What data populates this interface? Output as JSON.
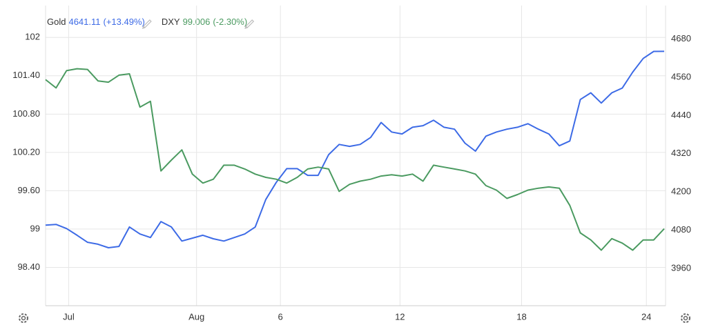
{
  "chart_data": {
    "type": "line",
    "legend": [
      {
        "name": "Gold",
        "value": "4641.11",
        "change": "(+13.49%)",
        "color": "#3c6ae6"
      },
      {
        "name": "DXY",
        "value": "99.006",
        "change": "(-2.30%)",
        "color": "#4a9a60"
      }
    ],
    "x": [
      0,
      1,
      2,
      3,
      4,
      5,
      6,
      7,
      8,
      9,
      10,
      11,
      12,
      13,
      14,
      15,
      16,
      17,
      18,
      19,
      20,
      21,
      22,
      23,
      24,
      25,
      26,
      27,
      28,
      29,
      30,
      31,
      32,
      33,
      34,
      35,
      36,
      37,
      38,
      39,
      40,
      41,
      42,
      43,
      44,
      45,
      46,
      47,
      48,
      49,
      50,
      51,
      52,
      53,
      54,
      55,
      56,
      57,
      58,
      59
    ],
    "xlim": [
      0,
      59
    ],
    "xticks": [
      {
        "value": 2.2,
        "label": "Jul"
      },
      {
        "value": 14.4,
        "label": "Aug"
      },
      {
        "value": 22.4,
        "label": "6"
      },
      {
        "value": 33.8,
        "label": "12"
      },
      {
        "value": 45.4,
        "label": "18"
      },
      {
        "value": 57.3,
        "label": "24"
      }
    ],
    "ylim": [
      97.8,
      102.5
    ],
    "yticks": [
      102,
      {
        "value": 101.4,
        "label": "101.40"
      },
      {
        "value": 100.8,
        "label": "100.80"
      },
      {
        "value": 100.2,
        "label": "100.20"
      },
      {
        "value": 99.6,
        "label": "99.60"
      },
      99,
      {
        "value": 98.4,
        "label": "98.40"
      }
    ],
    "y2lim": [
      3843,
      4785
    ],
    "y2ticks": [
      4680,
      4560,
      4440,
      4320,
      4200,
      4080,
      3960
    ],
    "grid": true,
    "series": [
      {
        "name": "Gold",
        "color": "#3c6ae6",
        "axis": "y2",
        "values": [
          4096,
          4098,
          4085,
          4064,
          4042,
          4036,
          4025,
          4029,
          4090,
          4068,
          4057,
          4107,
          4090,
          4046,
          4055,
          4064,
          4053,
          4046,
          4057,
          4068,
          4090,
          4176,
          4230,
          4273,
          4273,
          4252,
          4252,
          4317,
          4349,
          4343,
          4349,
          4371,
          4418,
          4388,
          4382,
          4403,
          4408,
          4425,
          4403,
          4397,
          4353,
          4328,
          4375,
          4388,
          4397,
          4403,
          4414,
          4397,
          4382,
          4345,
          4360,
          4490,
          4511,
          4479,
          4511,
          4526,
          4576,
          4619,
          4641,
          4641.11
        ]
      },
      {
        "name": "DXY",
        "color": "#4a9a60",
        "values": [
          101.34,
          101.21,
          101.48,
          101.51,
          101.5,
          101.32,
          101.3,
          101.41,
          101.43,
          100.91,
          101.0,
          99.91,
          100.08,
          100.24,
          99.86,
          99.72,
          99.78,
          100.0,
          100.0,
          99.94,
          99.86,
          99.81,
          99.78,
          99.72,
          99.81,
          99.94,
          99.97,
          99.94,
          99.59,
          99.7,
          99.75,
          99.78,
          99.83,
          99.85,
          99.83,
          99.86,
          99.75,
          100.0,
          99.97,
          99.94,
          99.91,
          99.86,
          99.68,
          99.61,
          99.48,
          99.54,
          99.61,
          99.64,
          99.66,
          99.64,
          99.37,
          98.94,
          98.83,
          98.67,
          98.85,
          98.78,
          98.67,
          98.83,
          98.83,
          99.006
        ]
      }
    ]
  }
}
